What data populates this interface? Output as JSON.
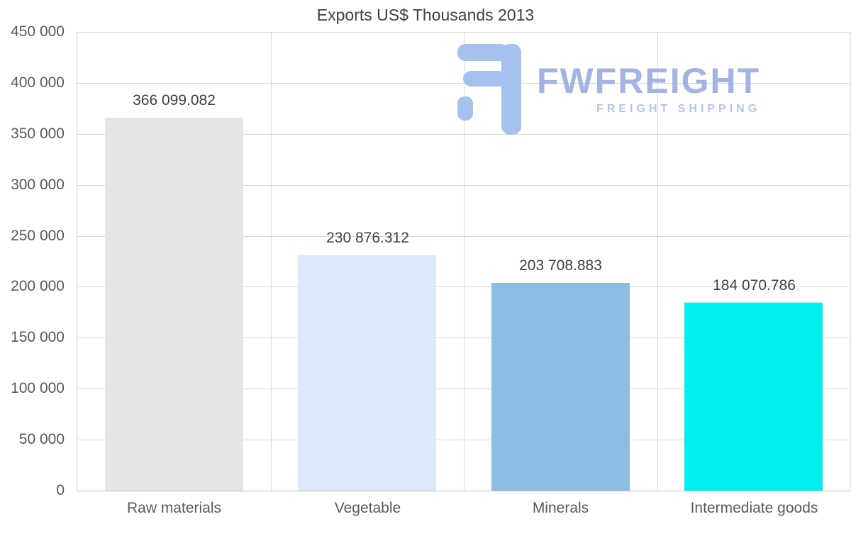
{
  "chart_data": {
    "type": "bar",
    "title": "Exports US$ Thousands 2013",
    "categories": [
      "Raw materials",
      "Vegetable",
      "Minerals",
      "Intermediate goods"
    ],
    "values": [
      366099.082,
      230876.312,
      203708.883,
      184070.786
    ],
    "value_labels": [
      "366 099.082",
      "230 876.312",
      "203 708.883",
      "184 070.786"
    ],
    "bar_colors": [
      "#e6e6e6",
      "#dce9f8",
      "#8cbde4",
      "#00efef"
    ],
    "xlabel": "",
    "ylabel": "",
    "ylim": [
      0,
      450000
    ],
    "ytick_step": 50000,
    "ytick_labels": [
      "0",
      "50 000",
      "100 000",
      "150 000",
      "200 000",
      "250 000",
      "300 000",
      "350 000",
      "400 000",
      "450 000"
    ],
    "grid": true,
    "legend": "none"
  },
  "watermark": {
    "name": "FWFREIGHT",
    "tagline": "FREIGHT SHIPPING",
    "text_color": "#a3b3e2",
    "tagline_color": "#b6c2ea",
    "icon_color": "#a5c2ee"
  }
}
